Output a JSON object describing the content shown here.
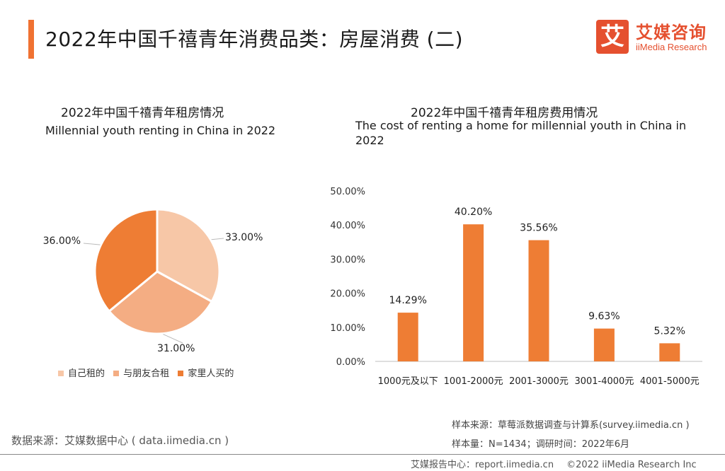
{
  "header": {
    "title": "2022年中国千禧青年消费品类：房屋消费 (二)",
    "logo_char": "艾",
    "logo_cn": "艾媒咨询",
    "logo_en": "iiMedia Research"
  },
  "colors": {
    "accent": "#f07232",
    "pie": [
      "#f7c7a7",
      "#f4ad83",
      "#ee7d34"
    ],
    "bar": "#ee7d34"
  },
  "chart_data": [
    {
      "type": "pie",
      "title": "2022年中国千禧青年租房情况",
      "subtitle": "Millennial youth renting in China in 2022",
      "categories": [
        "自己租的",
        "与朋友合租",
        "家里人买的"
      ],
      "values": [
        33.0,
        31.0,
        36.0
      ],
      "labels": [
        "33.00%",
        "31.00%",
        "36.00%"
      ],
      "legend_position": "bottom"
    },
    {
      "type": "bar",
      "title": "2022年中国千禧青年租房费用情况",
      "subtitle": "The cost of renting a home for millennial youth in China in 2022",
      "categories": [
        "1000元及以下",
        "1001-2000元",
        "2001-3000元",
        "3001-4000元",
        "4001-5000元"
      ],
      "values": [
        14.29,
        40.2,
        35.56,
        9.63,
        5.32
      ],
      "labels": [
        "14.29%",
        "40.20%",
        "35.56%",
        "9.63%",
        "5.32%"
      ],
      "ylim": [
        0,
        50
      ],
      "yticks": [
        "0.00%",
        "10.00%",
        "20.00%",
        "30.00%",
        "40.00%",
        "50.00%"
      ],
      "grid": false
    }
  ],
  "footer": {
    "data_source": "数据来源：艾媒数据中心 ( data.iimedia.cn )",
    "sample_source": "样本来源：草莓派数据调查与计算系(survey.iimedia.cn )",
    "sample_size": "样本量：N=1434；调研时间：2022年6月",
    "report_site": "艾媒报告中心：report.iimedia.cn",
    "copyright": "©2022  iiMedia Research Inc"
  }
}
